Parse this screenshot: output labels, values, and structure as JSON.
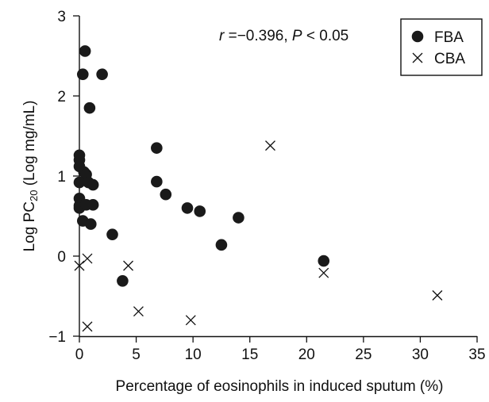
{
  "chart_data": {
    "type": "scatter",
    "title": "",
    "xlabel": "Percentage of eosinophils in induced sputum (%)",
    "ylabel_main": "Log PC",
    "ylabel_sub": "20",
    "ylabel_tail": " (Log  mg/mL)",
    "xlim": [
      0,
      35
    ],
    "ylim": [
      -1,
      3
    ],
    "xticks": [
      0,
      5,
      10,
      15,
      20,
      25,
      30,
      35
    ],
    "yticks": [
      -1,
      0,
      1,
      2,
      3
    ],
    "ytick_labels": [
      "−1",
      "0",
      "1",
      "2",
      "3"
    ],
    "annotation": {
      "r_symbol": "r",
      "r_value": " =−0.396, ",
      "p_symbol": "P",
      "p_value": " < 0.05"
    },
    "legend_position": "top-right",
    "series": [
      {
        "name": "FBA",
        "marker": "filled-circle",
        "points": [
          [
            0.5,
            2.56
          ],
          [
            0.3,
            2.27
          ],
          [
            2.0,
            2.27
          ],
          [
            0.9,
            1.85
          ],
          [
            0.0,
            1.26
          ],
          [
            0.0,
            1.2
          ],
          [
            0.0,
            1.12
          ],
          [
            0.4,
            1.05
          ],
          [
            0.6,
            1.02
          ],
          [
            0.0,
            0.92
          ],
          [
            0.8,
            0.92
          ],
          [
            1.2,
            0.89
          ],
          [
            0.0,
            0.72
          ],
          [
            0.0,
            0.63
          ],
          [
            0.0,
            0.6
          ],
          [
            0.6,
            0.64
          ],
          [
            1.2,
            0.64
          ],
          [
            0.3,
            0.44
          ],
          [
            1.0,
            0.4
          ],
          [
            2.9,
            0.27
          ],
          [
            3.8,
            -0.31
          ],
          [
            6.8,
            1.35
          ],
          [
            6.8,
            0.93
          ],
          [
            7.6,
            0.77
          ],
          [
            9.5,
            0.6
          ],
          [
            10.6,
            0.56
          ],
          [
            14.0,
            0.48
          ],
          [
            12.5,
            0.14
          ],
          [
            21.5,
            -0.06
          ]
        ]
      },
      {
        "name": "CBA",
        "marker": "cross",
        "points": [
          [
            0.0,
            -0.12
          ],
          [
            0.7,
            -0.03
          ],
          [
            4.3,
            -0.12
          ],
          [
            0.7,
            -0.88
          ],
          [
            5.2,
            -0.69
          ],
          [
            9.8,
            -0.8
          ],
          [
            16.8,
            1.38
          ],
          [
            21.5,
            -0.21
          ],
          [
            31.5,
            -0.49
          ]
        ]
      }
    ]
  }
}
